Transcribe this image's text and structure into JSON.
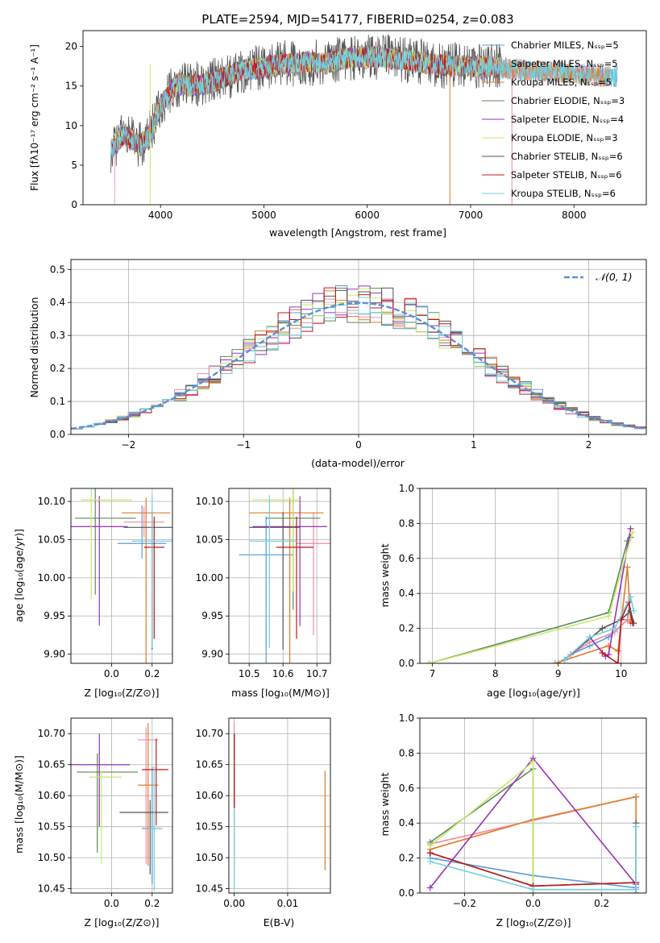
{
  "title": "PLATE=2594, MJD=54177, FIBERID=0254, z=0.083",
  "labels": {
    "spec_xlabel": "wavelength [Angstrom, rest frame]",
    "spec_ylabel": "Flux [fλ10⁻¹⁷ erg cm⁻² s⁻¹ A⁻¹]",
    "hist_xlabel": "(data-model)/error",
    "hist_ylabel": "Normed distribution",
    "hist_legend": "𝒩(0, 1)",
    "age_z_xlabel": "Z [log₁₀(Z/Z⊙)]",
    "age_z_ylabel": "age  [log₁₀(age/yr)]",
    "age_mass_xlabel": "mass [log₁₀(M/M⊙)]",
    "mw_age_xlabel": "age  [log₁₀(age/yr)]",
    "mw_age_ylabel": "mass weight",
    "mass_z_xlabel": "Z [log₁₀(Z/Z⊙)]",
    "mass_z_ylabel": "mass [log₁₀(M/M⊙)]",
    "mass_ebv_xlabel": "E(B-V)",
    "mw_z_xlabel": "Z [log₁₀(Z/Z⊙)]",
    "mw_z_ylabel": "mass weight"
  },
  "models": [
    {
      "name": "Chabrier MILES, Nₛₛₚ=5",
      "color": "#5b9bd5"
    },
    {
      "name": "Salpeter MILES, Nₛₛₚ=5",
      "color": "#f08ca0"
    },
    {
      "name": "Kroupa MILES, Nₛₛₚ=5",
      "color": "#e07b2a"
    },
    {
      "name": "Chabrier ELODIE, Nₛₛₚ=3",
      "color": "#5a8a5a"
    },
    {
      "name": "Salpeter ELODIE, Nₛₛₚ=4",
      "color": "#9b30b8"
    },
    {
      "name": "Kroupa ELODIE, Nₛₛₚ=3",
      "color": "#c8e86a"
    },
    {
      "name": "Chabrier STELIB, Nₛₛₚ=6",
      "color": "#555555"
    },
    {
      "name": "Salpeter STELIB, Nₛₛₚ=6",
      "color": "#c01818"
    },
    {
      "name": "Kroupa STELIB, Nₛₛₚ=6",
      "color": "#70d0e0"
    }
  ],
  "chart_data": [
    {
      "type": "line",
      "panel": "spectrum",
      "title": "PLATE=2594, MJD=54177, FIBERID=0254, z=0.083",
      "xlim": [
        3250,
        8700
      ],
      "ylim": [
        0,
        22
      ],
      "xticks": [
        4000,
        5000,
        6000,
        7000,
        8000
      ],
      "yticks": [
        0,
        5,
        10,
        15,
        20
      ],
      "continuum_x": [
        3520,
        3650,
        3800,
        3900,
        4000,
        4150,
        4300,
        4500,
        4800,
        5000,
        5200,
        5400,
        5600,
        5800,
        6000,
        6200,
        6400,
        6600,
        6800,
        7000,
        7200,
        7400,
        7600,
        7800,
        8000,
        8200,
        8400
      ],
      "continuum_y": [
        7,
        9,
        7.5,
        9,
        12.5,
        15.2,
        15,
        15.5,
        17,
        17.4,
        17.8,
        18,
        17.8,
        18.5,
        18.8,
        18.5,
        18.2,
        17.8,
        17.6,
        17.5,
        17.4,
        17.2,
        16.8,
        16.8,
        16.6,
        16.3,
        16.2
      ],
      "spikes_x": [
        3900,
        6800,
        7400
      ]
    },
    {
      "type": "step",
      "panel": "residual-histogram",
      "xlim": [
        -2.5,
        2.5
      ],
      "ylim": [
        0,
        0.53
      ],
      "xticks": [
        -2,
        -1,
        0,
        1,
        2
      ],
      "yticks": [
        0,
        0.1,
        0.2,
        0.3,
        0.4,
        0.5
      ],
      "bin_edges_start": -2.5,
      "bin_width": 0.1,
      "reference": "N(0,1)"
    },
    {
      "type": "scatter",
      "panel": "age-vs-Z",
      "xlim": [
        -0.2,
        0.3
      ],
      "ylim": [
        9.888,
        10.117
      ],
      "xticks": [
        0.0,
        0.2
      ],
      "yticks": [
        9.9,
        9.95,
        10.0,
        10.05,
        10.1
      ],
      "points": [
        {
          "x": 0.15,
          "y": 10.045,
          "xerr": [
            0.12,
            0.12
          ],
          "yerr": [
            0.02,
            0.05
          ]
        },
        {
          "x": 0.16,
          "y": 10.073,
          "xerr": [
            0.1,
            0.1
          ],
          "yerr": [
            0.02,
            0.02
          ]
        },
        {
          "x": 0.17,
          "y": 10.085,
          "xerr": [
            0.12,
            0.12
          ],
          "yerr": [
            0.2,
            0.02
          ]
        },
        {
          "x": -0.08,
          "y": 10.078,
          "xerr": [
            0.1,
            0.2
          ],
          "yerr": [
            0.1,
            0.04
          ]
        },
        {
          "x": -0.06,
          "y": 10.067,
          "xerr": [
            0.14,
            0.14
          ],
          "yerr": [
            0.13,
            0.04
          ]
        },
        {
          "x": -0.1,
          "y": 10.102,
          "xerr": [
            0.05,
            0.2
          ],
          "yerr": [
            0.13,
            0.02
          ]
        },
        {
          "x": 0.2,
          "y": 10.066,
          "xerr": [
            0.14,
            0.14
          ],
          "yerr": [
            0.16,
            0.02
          ]
        },
        {
          "x": 0.21,
          "y": 10.04,
          "xerr": [
            0.05,
            0.05
          ],
          "yerr": [
            0.12,
            0.04
          ]
        },
        {
          "x": 0.2,
          "y": 10.048,
          "xerr": [
            0.1,
            0.1
          ],
          "yerr": [
            0.14,
            0.06
          ]
        }
      ]
    },
    {
      "type": "scatter",
      "panel": "age-vs-mass",
      "xlim": [
        10.44,
        10.74
      ],
      "ylim": [
        9.888,
        10.117
      ],
      "xticks": [
        10.5,
        10.6,
        10.7
      ],
      "yticks": [
        9.9,
        9.95,
        10.0,
        10.05,
        10.1
      ],
      "points": [
        {
          "x": 10.55,
          "y": 10.03,
          "xerr": [
            0.08,
            0.08
          ],
          "yerr": [
            0.15,
            0.05
          ]
        },
        {
          "x": 10.69,
          "y": 10.045,
          "xerr": [
            0.05,
            0.05
          ],
          "yerr": [
            0.12,
            0.04
          ]
        },
        {
          "x": 10.62,
          "y": 10.085,
          "xerr": [
            0.12,
            0.1
          ],
          "yerr": [
            0.2,
            0.02
          ]
        },
        {
          "x": 10.63,
          "y": 10.078,
          "xerr": [
            0.08,
            0.08
          ],
          "yerr": [
            0.12,
            0.04
          ]
        },
        {
          "x": 10.65,
          "y": 10.067,
          "xerr": [
            0.14,
            0.08
          ],
          "yerr": [
            0.13,
            0.04
          ]
        },
        {
          "x": 10.63,
          "y": 10.102,
          "xerr": [
            0.12,
            0.02
          ],
          "yerr": [
            0.12,
            0.02
          ]
        },
        {
          "x": 10.6,
          "y": 10.066,
          "xerr": [
            0.1,
            0.05
          ],
          "yerr": [
            0.16,
            0.02
          ]
        },
        {
          "x": 10.64,
          "y": 10.04,
          "xerr": [
            0.06,
            0.05
          ],
          "yerr": [
            0.12,
            0.04
          ]
        },
        {
          "x": 10.56,
          "y": 10.048,
          "xerr": [
            0.06,
            0.08
          ],
          "yerr": [
            0.14,
            0.06
          ]
        }
      ]
    },
    {
      "type": "line",
      "panel": "mass-weight-vs-age",
      "xlim": [
        6.8,
        10.4
      ],
      "ylim": [
        0,
        1
      ],
      "xticks": [
        7,
        8,
        9,
        10
      ],
      "yticks": [
        0,
        0.2,
        0.4,
        0.6,
        0.8,
        1.0
      ],
      "series": [
        {
          "x": [
            9.0,
            9.2,
            9.5,
            9.8,
            10.1,
            10.15
          ],
          "y": [
            0.0,
            0.05,
            0.1,
            0.15,
            0.25,
            0.38
          ]
        },
        {
          "x": [
            9.2,
            9.5,
            9.9,
            10.1,
            10.15
          ],
          "y": [
            0.05,
            0.12,
            0.18,
            0.25,
            0.23
          ]
        },
        {
          "x": [
            8.95,
            9.8,
            9.95,
            10.1,
            10.15
          ],
          "y": [
            0.0,
            0.1,
            0.07,
            0.55,
            0.24
          ]
        },
        {
          "x": [
            6.95,
            9.8,
            10.1,
            10.15
          ],
          "y": [
            0.0,
            0.29,
            0.7,
            0.72
          ]
        },
        {
          "x": [
            9.5,
            9.75,
            9.8,
            10.15
          ],
          "y": [
            0.15,
            0.04,
            0.05,
            0.77
          ]
        },
        {
          "x": [
            6.95,
            9.8,
            10.18
          ],
          "y": [
            0.0,
            0.27,
            0.75
          ]
        },
        {
          "x": [
            9.1,
            9.7,
            10.0,
            10.15,
            10.2
          ],
          "y": [
            0.02,
            0.2,
            0.25,
            0.3,
            0.23
          ]
        },
        {
          "x": [
            9.7,
            9.95,
            10.0,
            10.12,
            10.18
          ],
          "y": [
            0.06,
            0.0,
            0.25,
            0.35,
            0.23
          ]
        },
        {
          "x": [
            9.1,
            9.5,
            9.9,
            10.15,
            10.2
          ],
          "y": [
            0.02,
            0.15,
            0.2,
            0.38,
            0.3
          ]
        }
      ]
    },
    {
      "type": "scatter",
      "panel": "mass-vs-Z",
      "xlim": [
        -0.2,
        0.3
      ],
      "ylim": [
        10.443,
        10.725
      ],
      "xticks": [
        0.0,
        0.2
      ],
      "yticks": [
        10.45,
        10.5,
        10.55,
        10.6,
        10.65,
        10.7
      ],
      "points": [
        {
          "x": 0.2,
          "y": 10.547,
          "xerr": [
            0.05,
            0.05
          ],
          "yerr": [
            0.09,
            0.1
          ]
        },
        {
          "x": 0.17,
          "y": 10.69,
          "xerr": [
            0.04,
            0.06
          ],
          "yerr": [
            0.2,
            0.02
          ]
        },
        {
          "x": 0.18,
          "y": 10.617,
          "xerr": [
            0.05,
            0.05
          ],
          "yerr": [
            0.13,
            0.1
          ]
        },
        {
          "x": -0.07,
          "y": 10.638,
          "xerr": [
            0.1,
            0.2
          ],
          "yerr": [
            0.13,
            0.03
          ]
        },
        {
          "x": -0.06,
          "y": 10.65,
          "xerr": [
            0.14,
            0.15
          ],
          "yerr": [
            0.1,
            0.05
          ]
        },
        {
          "x": -0.05,
          "y": 10.63,
          "xerr": [
            0.06,
            0.1
          ],
          "yerr": [
            0.14,
            0.01
          ]
        },
        {
          "x": 0.19,
          "y": 10.573,
          "xerr": [
            0.15,
            0.09
          ],
          "yerr": [
            0.1,
            0.02
          ]
        },
        {
          "x": 0.22,
          "y": 10.642,
          "xerr": [
            0.07,
            0.06
          ],
          "yerr": [
            0.09,
            0.05
          ]
        },
        {
          "x": 0.21,
          "y": 10.547,
          "xerr": [
            0.03,
            0.04
          ],
          "yerr": [
            0.1,
            0.1
          ]
        }
      ]
    },
    {
      "type": "scatter",
      "panel": "mass-vs-ebv",
      "xlim": [
        -0.001,
        0.018
      ],
      "ylim": [
        10.443,
        10.725
      ],
      "xticks": [
        0.0,
        0.01
      ],
      "yticks": [
        10.45,
        10.5,
        10.55,
        10.6,
        10.65,
        10.7
      ],
      "points": [
        {
          "x": 0.0,
          "y": 10.58,
          "yerr": [
            0.11,
            0.05
          ]
        },
        {
          "x": 0.0,
          "y": 10.69,
          "yerr": [
            0.2,
            0.03
          ]
        },
        {
          "x": 0.017,
          "y": 10.56,
          "yerr": [
            0.08,
            0.08
          ]
        },
        {
          "x": 0.0,
          "y": 10.63,
          "yerr": [
            0.05,
            0.07
          ]
        },
        {
          "x": 0.0,
          "y": 10.65,
          "yerr": [
            0.07,
            0.05
          ]
        },
        {
          "x": 0.0,
          "y": 10.52,
          "yerr": [
            0.07,
            0.06
          ]
        },
        {
          "x": 0.0,
          "y": 10.64,
          "yerr": [
            0.06,
            0.06
          ]
        },
        {
          "x": 0.0,
          "y": 10.64,
          "yerr": [
            0.06,
            0.06
          ]
        },
        {
          "x": 0.0,
          "y": 10.52,
          "yerr": [
            0.07,
            0.06
          ]
        }
      ]
    },
    {
      "type": "line",
      "panel": "mass-weight-vs-Z",
      "xlim": [
        -0.33,
        0.33
      ],
      "ylim": [
        0,
        1
      ],
      "xticks": [
        -0.2,
        0.0,
        0.2
      ],
      "yticks": [
        0,
        0.2,
        0.4,
        0.6,
        0.8,
        1.0
      ],
      "series": [
        {
          "x": [
            -0.3,
            0.0,
            0.3
          ],
          "y": [
            0.2,
            0.1,
            0.03
          ]
        },
        {
          "x": [
            -0.3,
            0.3
          ],
          "y": [
            0.28,
            0.55
          ]
        },
        {
          "x": [
            -0.3,
            0.0,
            0.3,
            0.3
          ],
          "y": [
            0.25,
            0.42,
            0.55,
            0.0
          ]
        },
        {
          "x": [
            -0.3,
            0.0,
            0.0
          ],
          "y": [
            0.29,
            0.71,
            0.0
          ]
        },
        {
          "x": [
            -0.3,
            0.0,
            0.3,
            0.3
          ],
          "y": [
            0.03,
            0.77,
            0.05,
            0.0
          ]
        },
        {
          "x": [
            -0.3,
            0.0,
            0.0
          ],
          "y": [
            0.27,
            0.75,
            0.0
          ]
        },
        {
          "x": [
            -0.3,
            0.0,
            0.3,
            0.3
          ],
          "y": [
            0.23,
            0.04,
            0.06,
            0.4
          ]
        },
        {
          "x": [
            -0.3,
            0.0,
            0.3,
            0.3
          ],
          "y": [
            0.23,
            0.04,
            0.06,
            0.38
          ]
        },
        {
          "x": [
            -0.3,
            0.0,
            0.3,
            0.3
          ],
          "y": [
            0.18,
            0.02,
            0.02,
            0.38
          ]
        }
      ]
    }
  ]
}
